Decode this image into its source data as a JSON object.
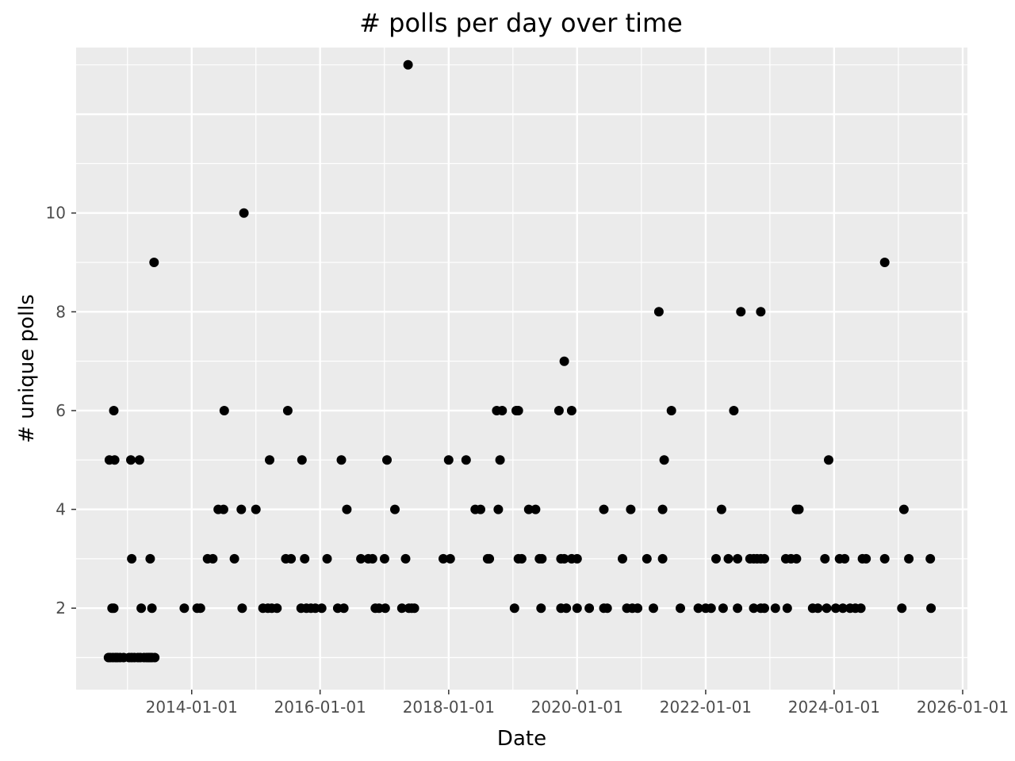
{
  "colors": {
    "panel_background": "#EBEBEB",
    "grid_major": "#FFFFFF",
    "point": "#000000",
    "tick_label": "#4D4D4D",
    "tick_mark": "#333333"
  },
  "chart_data": {
    "type": "scatter",
    "title": "# polls per day over time",
    "xlabel": "Date",
    "ylabel": "# unique polls",
    "x_axis": {
      "type": "date",
      "range": [
        "2012-03-15",
        "2026-01-28"
      ],
      "ticks": [
        "2014-01-01",
        "2016-01-01",
        "2018-01-01",
        "2020-01-01",
        "2022-01-01",
        "2024-01-01",
        "2026-01-01"
      ],
      "tick_labels": [
        "2014-01-01",
        "2016-01-01",
        "2018-01-01",
        "2020-01-01",
        "2022-01-01",
        "2024-01-01",
        "2026-01-01"
      ]
    },
    "y_axis": {
      "range": [
        0.35,
        13.35
      ],
      "ticks": [
        2,
        4,
        6,
        8,
        10
      ],
      "tick_labels": [
        "2",
        "4",
        "6",
        "8",
        "10"
      ]
    },
    "grid": true,
    "legend": "none",
    "series": [
      {
        "x": [
          "2012-09-15",
          "2012-09-25",
          "2012-10-10",
          "2012-10-25",
          "2012-11-05",
          "2012-11-20",
          "2012-12-10",
          "2013-01-10",
          "2013-01-25",
          "2013-02-10",
          "2013-03-01",
          "2013-03-15",
          "2013-04-05",
          "2013-04-20",
          "2013-05-01",
          "2013-05-10",
          "2013-05-20",
          "2013-06-05",
          "2012-10-05",
          "2012-10-15",
          "2013-03-20",
          "2013-05-20",
          "2013-11-20",
          "2014-02-01",
          "2014-02-20",
          "2014-10-15",
          "2015-02-10",
          "2015-03-10",
          "2015-04-01",
          "2015-05-01",
          "2015-09-15",
          "2015-10-15",
          "2015-11-10",
          "2015-12-05",
          "2016-01-10",
          "2016-04-10",
          "2016-05-15",
          "2016-11-10",
          "2016-12-01",
          "2017-01-05",
          "2017-04-10",
          "2017-05-20",
          "2017-06-05",
          "2017-06-20",
          "2019-01-10",
          "2019-06-10",
          "2019-10-01",
          "2019-11-01",
          "2020-01-01",
          "2020-03-10",
          "2020-06-01",
          "2020-06-20",
          "2020-10-10",
          "2020-11-10",
          "2020-12-10",
          "2021-03-10",
          "2021-08-10",
          "2021-11-20",
          "2022-01-01",
          "2022-02-01",
          "2022-04-10",
          "2022-07-01",
          "2022-10-01",
          "2022-11-10",
          "2022-12-01",
          "2023-02-01",
          "2023-04-10",
          "2023-09-01",
          "2023-10-01",
          "2023-11-20",
          "2024-01-10",
          "2024-02-20",
          "2024-04-01",
          "2024-05-01",
          "2024-06-01",
          "2025-01-20",
          "2025-07-05",
          "2013-01-25",
          "2013-05-10",
          "2014-04-01",
          "2014-05-01",
          "2014-09-01",
          "2015-06-20",
          "2015-07-20",
          "2015-10-05",
          "2016-02-10",
          "2016-08-20",
          "2016-10-01",
          "2016-10-25",
          "2017-01-01",
          "2017-05-01",
          "2017-12-01",
          "2018-01-10",
          "2018-08-10",
          "2018-08-20",
          "2019-02-01",
          "2019-02-20",
          "2019-06-01",
          "2019-06-15",
          "2019-10-01",
          "2019-10-20",
          "2019-12-01",
          "2020-01-01",
          "2020-09-15",
          "2021-02-01",
          "2021-05-01",
          "2022-03-01",
          "2022-05-10",
          "2022-07-01",
          "2022-09-10",
          "2022-10-01",
          "2022-10-20",
          "2022-11-10",
          "2022-12-01",
          "2023-04-01",
          "2023-05-01",
          "2023-06-01",
          "2023-11-10",
          "2024-02-01",
          "2024-03-01",
          "2024-06-10",
          "2024-07-01",
          "2024-10-15",
          "2025-03-01",
          "2025-07-01",
          "2014-06-01",
          "2014-07-01",
          "2014-10-10",
          "2015-01-01",
          "2016-06-01",
          "2017-03-01",
          "2018-06-01",
          "2018-07-01",
          "2018-10-10",
          "2019-04-01",
          "2019-05-10",
          "2020-06-01",
          "2020-11-01",
          "2021-05-01",
          "2022-04-01",
          "2023-06-01",
          "2023-06-15",
          "2025-02-01",
          "2012-09-20",
          "2012-10-20",
          "2013-01-20",
          "2013-03-10",
          "2015-03-20",
          "2015-09-20",
          "2016-05-01",
          "2017-01-15",
          "2018-01-01",
          "2018-04-10",
          "2018-10-20",
          "2021-05-10",
          "2023-12-01",
          "2012-10-15",
          "2014-07-05",
          "2015-07-01",
          "2018-10-01",
          "2018-11-01",
          "2019-01-20",
          "2019-02-01",
          "2019-09-20",
          "2019-12-01",
          "2021-06-20",
          "2022-06-10",
          "2019-10-20",
          "2021-04-10",
          "2022-07-20",
          "2022-11-10",
          "2013-06-01",
          "2024-10-15",
          "2014-10-25",
          "2017-05-15"
        ],
        "y": [
          1,
          1,
          1,
          1,
          1,
          1,
          1,
          1,
          1,
          1,
          1,
          1,
          1,
          1,
          1,
          1,
          1,
          1,
          2,
          2,
          2,
          2,
          2,
          2,
          2,
          2,
          2,
          2,
          2,
          2,
          2,
          2,
          2,
          2,
          2,
          2,
          2,
          2,
          2,
          2,
          2,
          2,
          2,
          2,
          2,
          2,
          2,
          2,
          2,
          2,
          2,
          2,
          2,
          2,
          2,
          2,
          2,
          2,
          2,
          2,
          2,
          2,
          2,
          2,
          2,
          2,
          2,
          2,
          2,
          2,
          2,
          2,
          2,
          2,
          2,
          2,
          2,
          3,
          3,
          3,
          3,
          3,
          3,
          3,
          3,
          3,
          3,
          3,
          3,
          3,
          3,
          3,
          3,
          3,
          3,
          3,
          3,
          3,
          3,
          3,
          3,
          3,
          3,
          3,
          3,
          3,
          3,
          3,
          3,
          3,
          3,
          3,
          3,
          3,
          3,
          3,
          3,
          3,
          3,
          3,
          3,
          3,
          3,
          3,
          3,
          4,
          4,
          4,
          4,
          4,
          4,
          4,
          4,
          4,
          4,
          4,
          4,
          4,
          4,
          4,
          4,
          4,
          4,
          5,
          5,
          5,
          5,
          5,
          5,
          5,
          5,
          5,
          5,
          5,
          5,
          5,
          6,
          6,
          6,
          6,
          6,
          6,
          6,
          6,
          6,
          6,
          6,
          7,
          8,
          8,
          8,
          9,
          9,
          10,
          13
        ]
      }
    ]
  }
}
